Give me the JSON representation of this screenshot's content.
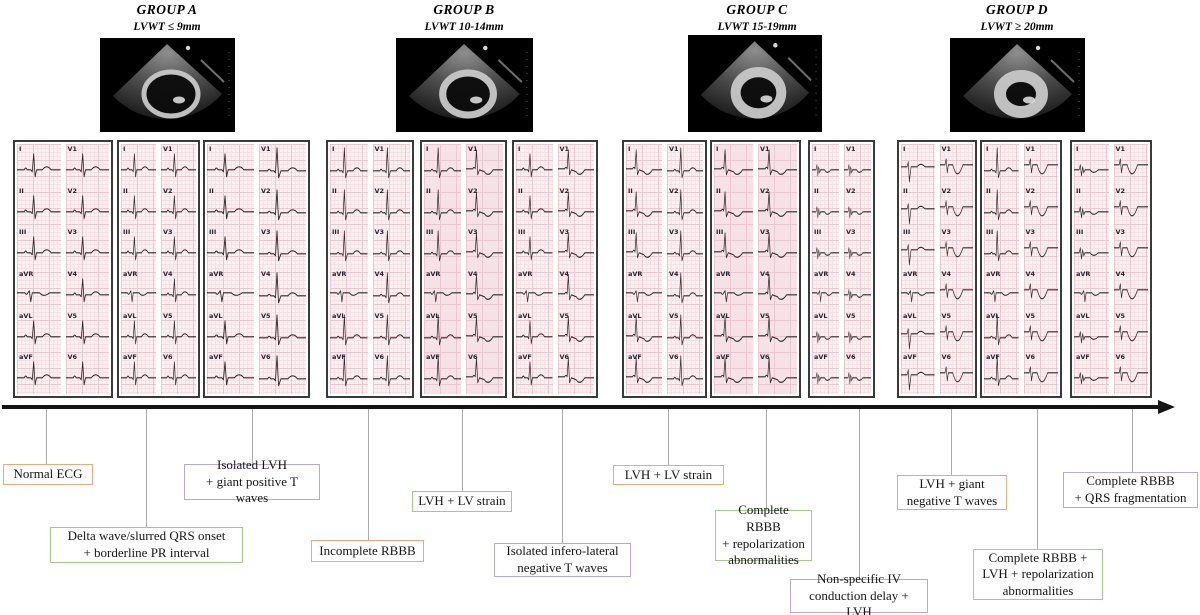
{
  "figure": {
    "groups": [
      {
        "name": "GROUP A",
        "lvwt": "LVWT ≤ 9mm",
        "ecg_pattern": "normal"
      },
      {
        "name": "GROUP B",
        "lvwt": "LVWT 10-14mm",
        "ecg_pattern": "lvh"
      },
      {
        "name": "GROUP C",
        "lvwt": "LVWT 15-19mm",
        "ecg_pattern": "lvh-strain-rbbb"
      },
      {
        "name": "GROUP D",
        "lvwt": "LVWT ≥ 20mm",
        "ecg_pattern": "giant-negative-t-rbbb"
      }
    ],
    "ecg_leads": {
      "limb": [
        "I",
        "II",
        "III",
        "aVR",
        "aVL",
        "aVF"
      ],
      "precordial": [
        "V1",
        "V2",
        "V3",
        "V4",
        "V5",
        "V6"
      ]
    },
    "findings": [
      {
        "label": "Normal ECG",
        "color": "orange"
      },
      {
        "label": "Delta wave/slurred QRS onset\n+ borderline PR interval",
        "color": "green"
      },
      {
        "label": "Isolated LVH\n+ giant positive T waves",
        "color": "purple"
      },
      {
        "label": "Incomplete RBBB",
        "color": "orange"
      },
      {
        "label": "LVH + LV strain",
        "color": "green"
      },
      {
        "label": "Isolated infero-lateral\nnegative T waves",
        "color": "purple"
      },
      {
        "label": "LVH + LV strain",
        "color": "orange"
      },
      {
        "label": "Complete RBBB\n+ repolarization\nabnormalities",
        "color": "green"
      },
      {
        "label": "Non-specific IV\nconduction delay + LVH",
        "color": "purple"
      },
      {
        "label": "LVH + giant\nnegative T waves",
        "color": "orange"
      },
      {
        "label": "Complete RBBB +\nLVH + repolarization\nabnormalities",
        "color": "green"
      },
      {
        "label": "Complete RBBB\n+ QRS fragmentation",
        "color": "purple"
      }
    ],
    "colors": {
      "orange": "#EAA97C",
      "green": "#A3C98C",
      "purple": "#B7A9D8",
      "connector": "#ABABAB",
      "arrow": "#151515",
      "ecg_grid": "#EAC7D1",
      "ecg_trace": "#2B2B2B"
    }
  }
}
